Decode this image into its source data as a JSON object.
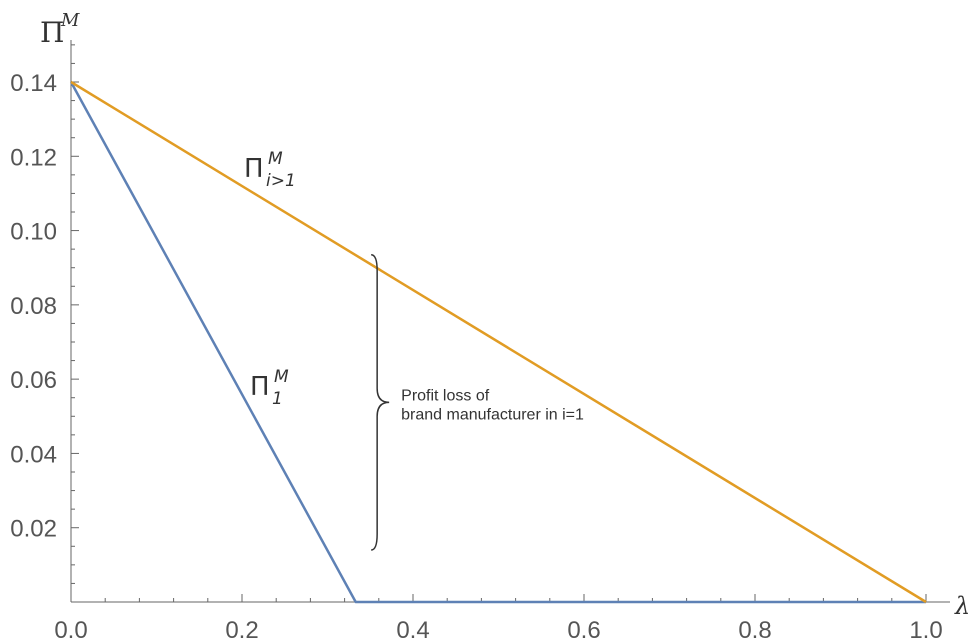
{
  "chart_data": {
    "type": "line",
    "title": "",
    "xlabel": "λ",
    "ylabel": {
      "base": "Π",
      "sup": "M"
    },
    "xlim": [
      0,
      1.0
    ],
    "ylim": [
      0,
      0.14
    ],
    "xticks": [
      "0.0",
      "0.2",
      "0.4",
      "0.6",
      "0.8",
      "1.0"
    ],
    "yticks": [
      "0.02",
      "0.04",
      "0.06",
      "0.08",
      "0.10",
      "0.12",
      "0.14"
    ],
    "grid": false,
    "series": [
      {
        "label_base": "Π",
        "label_sub": "1",
        "label_sup": "M",
        "color": "#5e81b5",
        "x": [
          0,
          0.333,
          1.0
        ],
        "y": [
          0.14,
          0,
          0
        ]
      },
      {
        "label_base": "Π",
        "label_sub": "i>1",
        "label_sup": "M",
        "color": "#e19c24",
        "x": [
          0,
          1.0
        ],
        "y": [
          0.14,
          0
        ]
      }
    ],
    "annotation": {
      "lines": [
        "Profit loss of",
        "brand manufacturer in i=1"
      ],
      "x": 0.33,
      "y_range": [
        0.014,
        0.0935
      ]
    }
  }
}
